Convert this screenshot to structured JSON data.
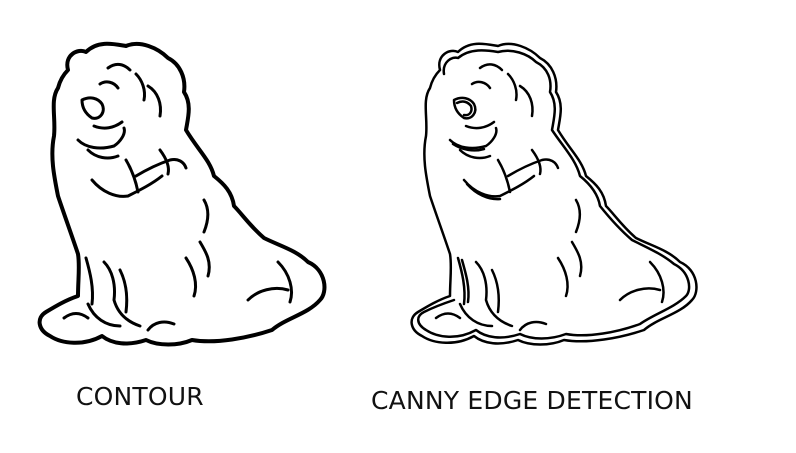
{
  "panels": [
    {
      "caption": "CONTOUR",
      "image": "dog-outline-contour",
      "stroke_color": "#000000"
    },
    {
      "caption": "CANNY EDGE DETECTION",
      "image": "dog-outline-canny-edges",
      "stroke_color": "#000000"
    }
  ],
  "background_color": "#ffffff"
}
